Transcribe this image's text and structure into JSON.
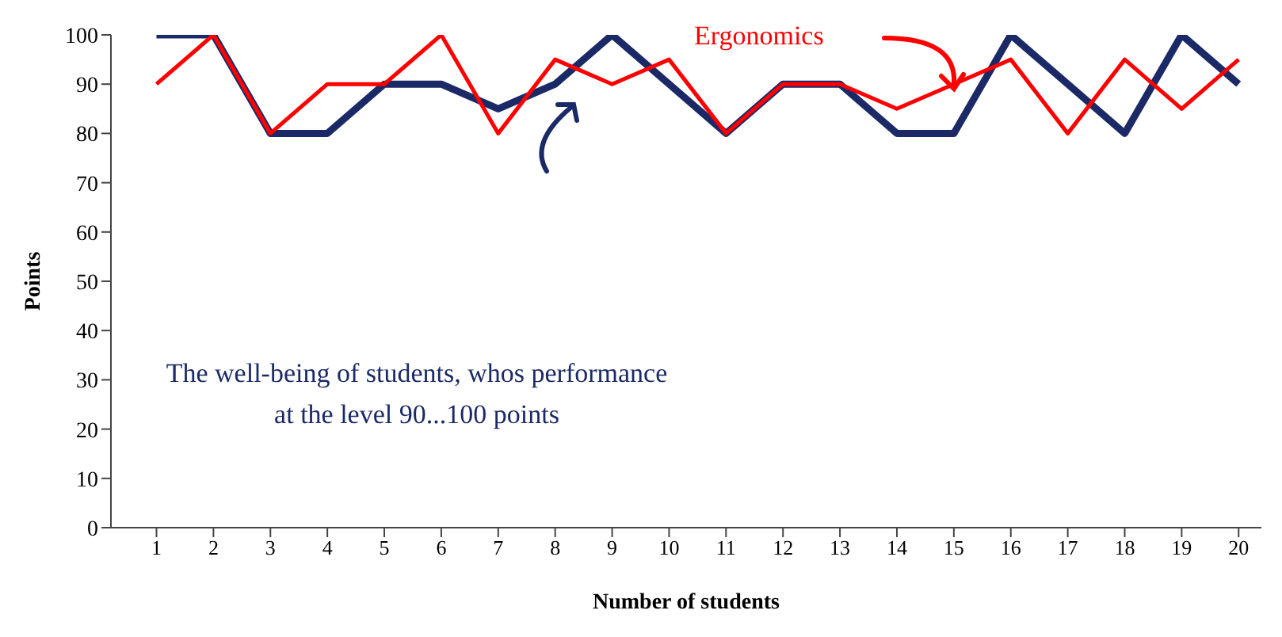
{
  "chart_data": {
    "type": "line",
    "xlabel": "Number of students",
    "ylabel": "Points",
    "x": [
      1,
      2,
      3,
      4,
      5,
      6,
      7,
      8,
      9,
      10,
      11,
      12,
      13,
      14,
      15,
      16,
      17,
      18,
      19,
      20
    ],
    "xlim": [
      0.2,
      20.4
    ],
    "xticks": [
      1,
      2,
      3,
      4,
      5,
      6,
      7,
      8,
      9,
      10,
      11,
      12,
      13,
      14,
      15,
      16,
      17,
      18,
      19,
      20
    ],
    "series": [
      {
        "name": "The well-being of students, whos performance at the level 90...100 points",
        "color": "#1b2a66",
        "values": [
          100,
          100,
          80,
          80,
          90,
          90,
          85,
          90,
          100,
          90,
          80,
          90,
          90,
          80,
          80,
          100,
          90,
          80,
          100,
          90
        ]
      },
      {
        "name": "Ergonomics",
        "color": "#ff0000",
        "values": [
          90,
          100,
          80,
          90,
          90,
          100,
          80,
          95,
          90,
          95,
          80,
          90,
          90,
          85,
          90,
          95,
          80,
          95,
          85,
          95
        ]
      }
    ],
    "ylim": [
      0,
      100
    ],
    "yticks": [
      0,
      10,
      20,
      30,
      40,
      50,
      60,
      70,
      80,
      90,
      100
    ],
    "grid": false,
    "legend": false,
    "marker": "none",
    "line_style": "solid"
  }
}
